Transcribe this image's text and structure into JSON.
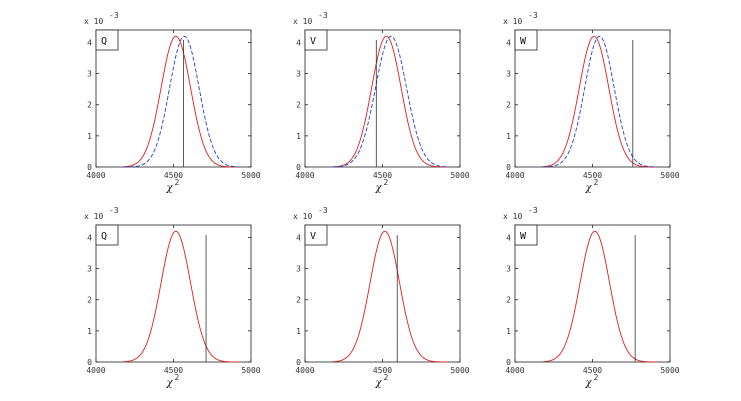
{
  "chart_data": [
    {
      "type": "line",
      "panel_label": "Q",
      "x_multiplier": "x 10",
      "x_multiplier_exp": "-3",
      "xlabel": "χ",
      "xlabel_exp": "2",
      "xlim": [
        4000,
        5000
      ],
      "ylim": [
        0,
        4.4
      ],
      "xticks": [
        "4000",
        "4500",
        "5000"
      ],
      "yticks": [
        "0",
        "1",
        "2",
        "3",
        "4"
      ],
      "vline_x": 4565,
      "series": [
        {
          "style": "solid",
          "color": "#e02020",
          "mean": 4515,
          "sd": 95,
          "peak": 4.2
        },
        {
          "style": "dashed",
          "color": "#2040d0",
          "mean": 4570,
          "sd": 95,
          "peak": 4.2
        }
      ]
    },
    {
      "type": "line",
      "panel_label": "V",
      "x_multiplier": "x 10",
      "x_multiplier_exp": "-3",
      "xlabel": "χ",
      "xlabel_exp": "2",
      "xlim": [
        4000,
        5000
      ],
      "ylim": [
        0,
        4.4
      ],
      "xticks": [
        "4000",
        "4500",
        "5000"
      ],
      "yticks": [
        "0",
        "1",
        "2",
        "3",
        "4"
      ],
      "vline_x": 4460,
      "series": [
        {
          "style": "solid",
          "color": "#e02020",
          "mean": 4525,
          "sd": 95,
          "peak": 4.2
        },
        {
          "style": "dashed",
          "color": "#2040d0",
          "mean": 4555,
          "sd": 100,
          "peak": 4.2
        }
      ]
    },
    {
      "type": "line",
      "panel_label": "W",
      "x_multiplier": "x 10",
      "x_multiplier_exp": "-3",
      "xlabel": "χ",
      "xlabel_exp": "2",
      "xlim": [
        4000,
        5000
      ],
      "ylim": [
        0,
        4.4
      ],
      "xticks": [
        "4000",
        "4500",
        "5000"
      ],
      "yticks": [
        "0",
        "1",
        "2",
        "3",
        "4"
      ],
      "vline_x": 4760,
      "series": [
        {
          "style": "solid",
          "color": "#e02020",
          "mean": 4510,
          "sd": 95,
          "peak": 4.2
        },
        {
          "style": "dashed",
          "color": "#2040d0",
          "mean": 4545,
          "sd": 95,
          "peak": 4.2
        }
      ]
    },
    {
      "type": "line",
      "panel_label": "Q",
      "x_multiplier": "x 10",
      "x_multiplier_exp": "-3",
      "xlabel": "χ",
      "xlabel_exp": "2",
      "xlim": [
        4000,
        5000
      ],
      "ylim": [
        0,
        4.4
      ],
      "xticks": [
        "4000",
        "4500",
        "5000"
      ],
      "yticks": [
        "0",
        "1",
        "2",
        "3",
        "4"
      ],
      "vline_x": 4710,
      "series": [
        {
          "style": "solid",
          "color": "#e02020",
          "mean": 4515,
          "sd": 95,
          "peak": 4.2
        }
      ]
    },
    {
      "type": "line",
      "panel_label": "V",
      "x_multiplier": "x 10",
      "x_multiplier_exp": "-3",
      "xlabel": "χ",
      "xlabel_exp": "2",
      "xlim": [
        4000,
        5000
      ],
      "ylim": [
        0,
        4.4
      ],
      "xticks": [
        "4000",
        "4500",
        "5000"
      ],
      "yticks": [
        "0",
        "1",
        "2",
        "3",
        "4"
      ],
      "vline_x": 4595,
      "series": [
        {
          "style": "solid",
          "color": "#e02020",
          "mean": 4515,
          "sd": 95,
          "peak": 4.2
        }
      ]
    },
    {
      "type": "line",
      "panel_label": "W",
      "x_multiplier": "x 10",
      "x_multiplier_exp": "-3",
      "xlabel": "χ",
      "xlabel_exp": "2",
      "xlim": [
        4000,
        5000
      ],
      "ylim": [
        0,
        4.4
      ],
      "xticks": [
        "4000",
        "4500",
        "5000"
      ],
      "yticks": [
        "0",
        "1",
        "2",
        "3",
        "4"
      ],
      "vline_x": 4775,
      "series": [
        {
          "style": "solid",
          "color": "#e02020",
          "mean": 4515,
          "sd": 95,
          "peak": 4.2
        }
      ]
    }
  ]
}
